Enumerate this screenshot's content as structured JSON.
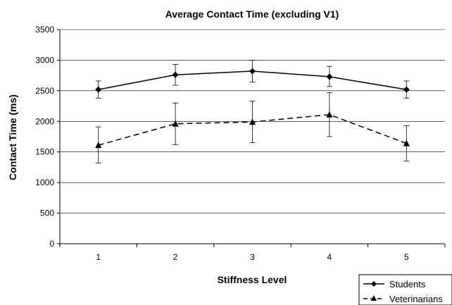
{
  "chart_data": {
    "type": "line",
    "title": "Average Contact Time (excluding V1)",
    "xlabel": "Stiffness Level",
    "ylabel": "Contact Time (ms)",
    "categories": [
      "1",
      "2",
      "3",
      "4",
      "5"
    ],
    "ylim": [
      0,
      3500
    ],
    "yticks": [
      "0",
      "500",
      "1000",
      "1500",
      "2000",
      "2500",
      "3000",
      "3500"
    ],
    "grid": true,
    "legend_position": "bottom-right",
    "series": [
      {
        "name": "Students",
        "values": [
          2520,
          2760,
          2820,
          2730,
          2520
        ],
        "error_low": [
          2380,
          2590,
          2640,
          2570,
          2380
        ],
        "error_high": [
          2660,
          2930,
          3000,
          2900,
          2660
        ],
        "marker": "diamond",
        "line_style": "solid",
        "color": "#000000"
      },
      {
        "name": "Veterinarians",
        "values": [
          1610,
          1960,
          1990,
          2110,
          1640
        ],
        "error_low": [
          1320,
          1620,
          1650,
          1750,
          1350
        ],
        "error_high": [
          1910,
          2300,
          2330,
          2470,
          1930
        ],
        "marker": "triangle",
        "line_style": "dashed",
        "color": "#000000"
      }
    ]
  }
}
